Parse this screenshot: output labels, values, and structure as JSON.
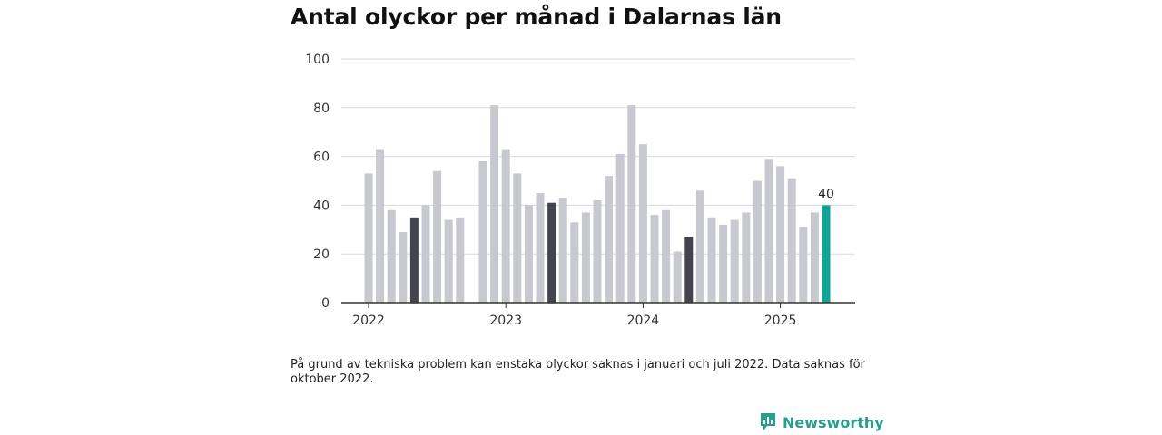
{
  "colors": {
    "default": "#c8c8d0",
    "highlight": "#44444f",
    "latest": "#11a394",
    "grid": "#d9d9d9",
    "axis": "#333333",
    "brand": "#2a9d8f"
  },
  "chart_data": {
    "type": "bar",
    "title": "Antal olyckor per månad i Dalarnas län",
    "xlabel": "",
    "ylabel": "",
    "ylim": [
      0,
      100
    ],
    "yticks": [
      "0",
      "20",
      "40",
      "60",
      "80",
      "100"
    ],
    "xticks": [
      {
        "label": "2022",
        "index": 0
      },
      {
        "label": "2023",
        "index": 12
      },
      {
        "label": "2024",
        "index": 24
      },
      {
        "label": "2025",
        "index": 36
      }
    ],
    "grid": true,
    "highlight_label": "40",
    "bars": [
      {
        "month": "2022-01",
        "value": 53,
        "status": "default"
      },
      {
        "month": "2022-02",
        "value": 63,
        "status": "default"
      },
      {
        "month": "2022-03",
        "value": 38,
        "status": "default"
      },
      {
        "month": "2022-04",
        "value": 29,
        "status": "default"
      },
      {
        "month": "2022-05",
        "value": 35,
        "status": "highlight"
      },
      {
        "month": "2022-06",
        "value": 40,
        "status": "default"
      },
      {
        "month": "2022-07",
        "value": 54,
        "status": "default"
      },
      {
        "month": "2022-08",
        "value": 34,
        "status": "default"
      },
      {
        "month": "2022-09",
        "value": 35,
        "status": "default"
      },
      {
        "month": "2022-10",
        "value": null,
        "status": "missing"
      },
      {
        "month": "2022-11",
        "value": 58,
        "status": "default"
      },
      {
        "month": "2022-12",
        "value": 81,
        "status": "default"
      },
      {
        "month": "2023-01",
        "value": 63,
        "status": "default"
      },
      {
        "month": "2023-02",
        "value": 53,
        "status": "default"
      },
      {
        "month": "2023-03",
        "value": 40,
        "status": "default"
      },
      {
        "month": "2023-04",
        "value": 45,
        "status": "default"
      },
      {
        "month": "2023-05",
        "value": 41,
        "status": "highlight"
      },
      {
        "month": "2023-06",
        "value": 43,
        "status": "default"
      },
      {
        "month": "2023-07",
        "value": 33,
        "status": "default"
      },
      {
        "month": "2023-08",
        "value": 37,
        "status": "default"
      },
      {
        "month": "2023-09",
        "value": 42,
        "status": "default"
      },
      {
        "month": "2023-10",
        "value": 52,
        "status": "default"
      },
      {
        "month": "2023-11",
        "value": 61,
        "status": "default"
      },
      {
        "month": "2023-12",
        "value": 81,
        "status": "default"
      },
      {
        "month": "2024-01",
        "value": 65,
        "status": "default"
      },
      {
        "month": "2024-02",
        "value": 36,
        "status": "default"
      },
      {
        "month": "2024-03",
        "value": 38,
        "status": "default"
      },
      {
        "month": "2024-04",
        "value": 21,
        "status": "default"
      },
      {
        "month": "2024-05",
        "value": 27,
        "status": "highlight"
      },
      {
        "month": "2024-06",
        "value": 46,
        "status": "default"
      },
      {
        "month": "2024-07",
        "value": 35,
        "status": "default"
      },
      {
        "month": "2024-08",
        "value": 32,
        "status": "default"
      },
      {
        "month": "2024-09",
        "value": 34,
        "status": "default"
      },
      {
        "month": "2024-10",
        "value": 37,
        "status": "default"
      },
      {
        "month": "2024-11",
        "value": 50,
        "status": "default"
      },
      {
        "month": "2024-12",
        "value": 59,
        "status": "default"
      },
      {
        "month": "2025-01",
        "value": 56,
        "status": "default"
      },
      {
        "month": "2025-02",
        "value": 51,
        "status": "default"
      },
      {
        "month": "2025-03",
        "value": 31,
        "status": "default"
      },
      {
        "month": "2025-04",
        "value": 37,
        "status": "default"
      },
      {
        "month": "2025-05",
        "value": 40,
        "status": "latest"
      }
    ]
  },
  "note": "På grund av tekniska problem kan enstaka olyckor saknas i januari och juli 2022. Data saknas för oktober 2022.",
  "brand": {
    "name": "Newsworthy",
    "icon": "newsworthy-logo-icon"
  }
}
